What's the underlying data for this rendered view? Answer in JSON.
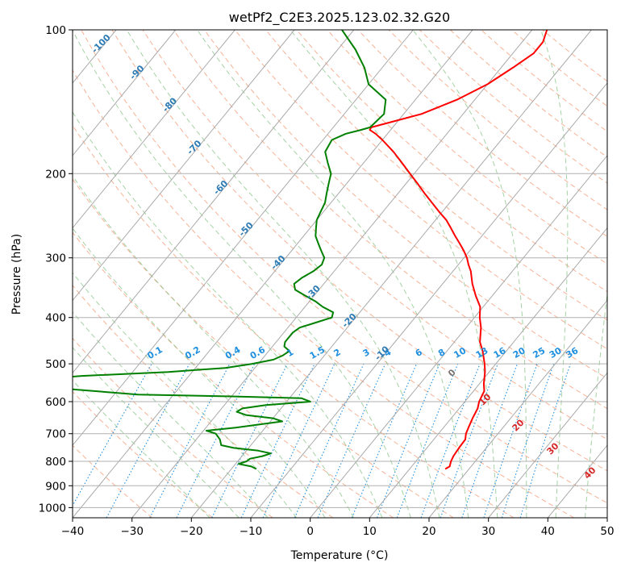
{
  "chart_data": {
    "type": "line",
    "title": "wetPf2_C2E3.2025.123.02.32.G20",
    "xlabel": "Temperature (°C)",
    "ylabel": "Pressure (hPa)",
    "xlim": [
      -40,
      50
    ],
    "ylim": [
      1050,
      100
    ],
    "y_scale": "log",
    "grid": true,
    "xticks": [
      -40,
      -30,
      -20,
      -10,
      0,
      10,
      20,
      30,
      40,
      50
    ],
    "yticks": [
      100,
      200,
      300,
      400,
      500,
      600,
      700,
      800,
      900,
      1000
    ],
    "skew_t": true,
    "background_lines": {
      "isotherm_labels": [
        "-100",
        "-90",
        "-80",
        "-70",
        "-60",
        "-50",
        "-40",
        "-30",
        "-20",
        "-10"
      ],
      "mixing_ratio_labels": [
        "0.1",
        "0.2",
        "0.4",
        "0.6",
        "1",
        "1.5",
        "2",
        "3",
        "4",
        "6",
        "8",
        "10",
        "13",
        "16",
        "20",
        "25",
        "30",
        "36"
      ],
      "moist_adiabat_labels": [
        "0",
        "10",
        "20",
        "30",
        "40"
      ],
      "colors": {
        "dry_adiabat": "#f4a582",
        "moist_adiabat": "#7fbf7f",
        "mixing_ratio": "#1f8fe0",
        "isotherm": "#808080"
      }
    },
    "series": [
      {
        "color": "#ff0000",
        "pressure": [
          830,
          820,
          800,
          780,
          750,
          720,
          700,
          680,
          650,
          620,
          600,
          570,
          550,
          520,
          500,
          470,
          450,
          420,
          400,
          380,
          360,
          340,
          320,
          310,
          300,
          290,
          280,
          270,
          260,
          250,
          240,
          230,
          220,
          210,
          200,
          190,
          180,
          170,
          165,
          162,
          160,
          150,
          140,
          130,
          120,
          112,
          106,
          100
        ],
        "temperature": [
          16.0,
          16.4,
          15.9,
          15.6,
          15.4,
          15.3,
          14.6,
          14.2,
          13.6,
          13.1,
          12.4,
          11.8,
          10.7,
          9.3,
          8.1,
          6.0,
          4.3,
          2.5,
          0.9,
          -0.5,
          -2.8,
          -5.0,
          -7.0,
          -8.3,
          -9.5,
          -11.0,
          -12.7,
          -14.5,
          -16.3,
          -18.2,
          -20.6,
          -23.0,
          -25.5,
          -28.0,
          -30.7,
          -33.5,
          -36.5,
          -40.0,
          -42.0,
          -43.5,
          -43.6,
          -37.0,
          -33.0,
          -30.0,
          -28.0,
          -26.5,
          -26.5,
          -27.5
        ]
      },
      {
        "color": "#008000",
        "pressure": [
          830,
          820,
          810,
          800,
          790,
          780,
          770,
          760,
          750,
          740,
          720,
          700,
          690,
          680,
          660,
          650,
          640,
          630,
          620,
          610,
          600,
          590,
          585,
          580,
          560,
          540,
          530,
          520,
          510,
          500,
          490,
          480,
          470,
          460,
          450,
          440,
          430,
          420,
          410,
          400,
          390,
          380,
          370,
          360,
          350,
          340,
          330,
          320,
          310,
          300,
          290,
          280,
          270,
          260,
          250,
          240,
          230,
          220,
          210,
          200,
          190,
          180,
          170,
          165,
          162,
          160,
          150,
          140,
          130,
          120,
          110,
          100
        ],
        "dewpoint": [
          -15.8,
          -17.0,
          -19.5,
          -18.5,
          -18.3,
          -16.5,
          -15.5,
          -18.0,
          -22.5,
          -25.0,
          -26.0,
          -27.5,
          -29.5,
          -25.0,
          -18.0,
          -20.0,
          -25.0,
          -27.0,
          -26.5,
          -23.0,
          -16.0,
          -18.0,
          -30.0,
          -46.0,
          -62.0,
          -66.0,
          -58.0,
          -44.0,
          -35.0,
          -31.0,
          -28.0,
          -27.0,
          -26.5,
          -28.0,
          -28.5,
          -28.5,
          -28.5,
          -28.0,
          -26.0,
          -24.0,
          -24.5,
          -27.0,
          -29.0,
          -31.5,
          -34.0,
          -35.0,
          -34.5,
          -33.5,
          -33.0,
          -33.5,
          -35.0,
          -36.5,
          -38.0,
          -39.0,
          -40.0,
          -40.5,
          -41.0,
          -42.0,
          -43.0,
          -44.0,
          -46.0,
          -48.0,
          -48.5,
          -47.0,
          -45.0,
          -43.8,
          -43.3,
          -45.0,
          -50.0,
          -53.0,
          -57.0,
          -62.0
        ]
      }
    ]
  }
}
